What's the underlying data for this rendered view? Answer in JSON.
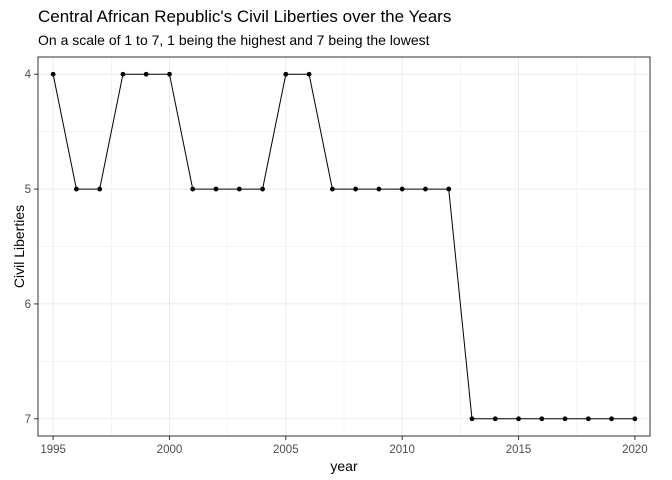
{
  "chart_data": {
    "type": "line",
    "title": "Central African Republic's Civil Liberties over the Years",
    "subtitle": "On a scale of 1 to 7, 1 being the highest and 7 being the lowest",
    "xlabel": "year",
    "ylabel": "Civil Liberties",
    "x": [
      1995,
      1996,
      1997,
      1998,
      1999,
      2000,
      2001,
      2002,
      2003,
      2004,
      2005,
      2006,
      2007,
      2008,
      2009,
      2010,
      2011,
      2012,
      2013,
      2014,
      2015,
      2016,
      2017,
      2018,
      2019,
      2020
    ],
    "series": [
      {
        "values": [
          4,
          5,
          5,
          4,
          4,
          4,
          5,
          5,
          5,
          5,
          4,
          4,
          5,
          5,
          5,
          5,
          5,
          5,
          7,
          7,
          7,
          7,
          7,
          7,
          7,
          7
        ]
      }
    ],
    "xlim": [
      1994.35,
      2020.65
    ],
    "ylim": [
      3.85,
      7.15
    ],
    "y_reversed": true,
    "xticks": [
      1995,
      2000,
      2005,
      2010,
      2015,
      2020
    ],
    "yticks": [
      4,
      5,
      6,
      7
    ],
    "grid": true,
    "line_color": "#000000",
    "point_color": "#000000",
    "grid_color": "#ebebeb",
    "border_color": "#333333"
  }
}
